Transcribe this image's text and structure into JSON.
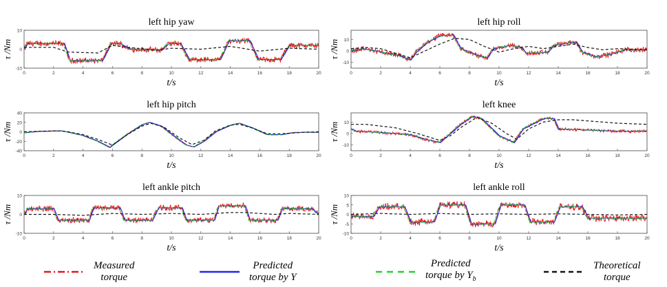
{
  "chart_data": [
    {
      "type": "line",
      "title": "left hip yaw",
      "xlabel": "t/s",
      "ylabel": "τ /Nm",
      "xlim": [
        0,
        20
      ],
      "ylim": [
        -10,
        10
      ],
      "xticks": [
        "0",
        "2",
        "4",
        "6",
        "8",
        "10",
        "12",
        "14",
        "16",
        "18",
        "20"
      ],
      "yticks": [
        "10",
        "0",
        "-10"
      ],
      "series_profile": {
        "measured_steps": [
          [
            0,
            0
          ],
          [
            0.2,
            3
          ],
          [
            2.7,
            3
          ],
          [
            3.1,
            -6
          ],
          [
            5.3,
            -6
          ],
          [
            5.9,
            3
          ],
          [
            6.5,
            3
          ],
          [
            7.2,
            0
          ],
          [
            9.3,
            -0.5
          ],
          [
            9.8,
            3
          ],
          [
            10.6,
            3
          ],
          [
            11.2,
            -5.5
          ],
          [
            13.3,
            -5.5
          ],
          [
            13.9,
            4.5
          ],
          [
            15.3,
            4.5
          ],
          [
            15.9,
            -5.5
          ],
          [
            17.4,
            -5.5
          ],
          [
            18.0,
            2
          ],
          [
            20,
            2
          ]
        ],
        "theoretical": [
          [
            0,
            1
          ],
          [
            2,
            1
          ],
          [
            3,
            -1.5
          ],
          [
            5,
            -2
          ],
          [
            6,
            2
          ],
          [
            7,
            1
          ],
          [
            9,
            -0.5
          ],
          [
            10,
            0.5
          ],
          [
            12,
            0
          ],
          [
            14,
            1.5
          ],
          [
            16,
            -1
          ],
          [
            18,
            0.5
          ],
          [
            20,
            0
          ]
        ],
        "noise": 1.2
      }
    },
    {
      "type": "line",
      "title": "left hip roll",
      "xlabel": "t/s",
      "ylabel": "τ /Nm",
      "xlim": [
        0,
        20
      ],
      "ylim": [
        -15,
        18
      ],
      "xticks": [
        "0",
        "2",
        "4",
        "6",
        "8",
        "10",
        "12",
        "14",
        "16",
        "18",
        "20"
      ],
      "yticks": [
        "10",
        "0",
        "-10"
      ],
      "series_profile": {
        "measured_steps": [
          [
            0,
            0
          ],
          [
            0.8,
            2
          ],
          [
            2,
            -1
          ],
          [
            3.2,
            -4
          ],
          [
            4,
            -8
          ],
          [
            4.4,
            -1
          ],
          [
            5.2,
            8
          ],
          [
            6,
            13
          ],
          [
            6.9,
            14
          ],
          [
            7.4,
            2
          ],
          [
            8.5,
            -4
          ],
          [
            9.2,
            -6
          ],
          [
            9.6,
            2
          ],
          [
            10.8,
            5
          ],
          [
            11.5,
            3
          ],
          [
            11.8,
            -2
          ],
          [
            12.5,
            -2
          ],
          [
            13.3,
            -1
          ],
          [
            13.7,
            5
          ],
          [
            15.2,
            8
          ],
          [
            15.6,
            -1
          ],
          [
            16.5,
            -5
          ],
          [
            17.5,
            -3
          ],
          [
            18.5,
            1
          ],
          [
            20,
            1
          ]
        ],
        "theoretical": [
          [
            0,
            2
          ],
          [
            1,
            3
          ],
          [
            2,
            2
          ],
          [
            3,
            -2
          ],
          [
            4,
            -6
          ],
          [
            5,
            0
          ],
          [
            6,
            6
          ],
          [
            7,
            11
          ],
          [
            8,
            10
          ],
          [
            9,
            4
          ],
          [
            10,
            -1
          ],
          [
            11,
            2
          ],
          [
            12,
            4
          ],
          [
            13,
            2
          ],
          [
            14,
            4
          ],
          [
            15,
            6
          ],
          [
            16,
            3
          ],
          [
            17,
            1
          ],
          [
            18,
            2
          ],
          [
            20,
            1
          ]
        ],
        "noise": 1.8
      }
    },
    {
      "type": "line",
      "title": "left hip pitch",
      "xlabel": "t/s",
      "ylabel": "τ /Nm",
      "xlim": [
        0,
        20
      ],
      "ylim": [
        -40,
        40
      ],
      "xticks": [
        "0",
        "2",
        "4",
        "6",
        "8",
        "10",
        "12",
        "14",
        "16",
        "18",
        "20"
      ],
      "yticks": [
        "40",
        "20",
        "0",
        "-20",
        "-40"
      ],
      "series_profile": {
        "measured_steps": [
          [
            0,
            -2
          ],
          [
            1,
            1
          ],
          [
            2.5,
            2
          ],
          [
            3,
            -1
          ],
          [
            4,
            -8
          ],
          [
            5,
            -20
          ],
          [
            5.8,
            -33
          ],
          [
            6,
            -28
          ],
          [
            7,
            -5
          ],
          [
            8,
            15
          ],
          [
            8.5,
            20
          ],
          [
            9.3,
            12
          ],
          [
            10.2,
            -10
          ],
          [
            11,
            -28
          ],
          [
            11.5,
            -32
          ],
          [
            12.2,
            -20
          ],
          [
            13,
            0
          ],
          [
            14,
            14
          ],
          [
            14.6,
            18
          ],
          [
            15.5,
            8
          ],
          [
            16.5,
            -6
          ],
          [
            17.5,
            -6
          ],
          [
            18.2,
            -2
          ],
          [
            19,
            -1
          ],
          [
            20,
            -1
          ]
        ],
        "theoretical": [
          [
            0,
            0
          ],
          [
            1,
            1
          ],
          [
            2.5,
            2
          ],
          [
            3,
            0
          ],
          [
            4,
            -6
          ],
          [
            5,
            -16
          ],
          [
            6,
            -28
          ],
          [
            7,
            -6
          ],
          [
            8,
            12
          ],
          [
            8.6,
            18
          ],
          [
            9.5,
            10
          ],
          [
            10.5,
            -12
          ],
          [
            11.4,
            -27
          ],
          [
            12.2,
            -18
          ],
          [
            13,
            2
          ],
          [
            14,
            14
          ],
          [
            14.6,
            16
          ],
          [
            15.5,
            8
          ],
          [
            16.5,
            -4
          ],
          [
            17.5,
            -4
          ],
          [
            19,
            -1
          ],
          [
            20,
            0
          ]
        ],
        "noise": 0.7
      }
    },
    {
      "type": "line",
      "title": "left knee",
      "xlabel": "t/s",
      "ylabel": "τ /Nm",
      "xlim": [
        0,
        20
      ],
      "ylim": [
        -15,
        18
      ],
      "xticks": [
        "0",
        "2",
        "4",
        "6",
        "8",
        "10",
        "12",
        "14",
        "16",
        "18",
        "20"
      ],
      "yticks": [
        "10",
        "0",
        "-10"
      ],
      "series_profile": {
        "measured_steps": [
          [
            0,
            4
          ],
          [
            0.3,
            2
          ],
          [
            2,
            1
          ],
          [
            4,
            -1
          ],
          [
            5,
            -5
          ],
          [
            6,
            -8
          ],
          [
            6.5,
            -2
          ],
          [
            7.5,
            9
          ],
          [
            8.2,
            15
          ],
          [
            8.8,
            13
          ],
          [
            9.2,
            8
          ],
          [
            10,
            -2
          ],
          [
            11,
            -8
          ],
          [
            11.6,
            4
          ],
          [
            13,
            13
          ],
          [
            13.7,
            13
          ],
          [
            14,
            4
          ],
          [
            16,
            3
          ],
          [
            18,
            2
          ],
          [
            20,
            2
          ]
        ],
        "theoretical": [
          [
            0,
            8
          ],
          [
            1,
            8
          ],
          [
            3,
            5
          ],
          [
            4.5,
            0
          ],
          [
            6,
            -6
          ],
          [
            6.7,
            -2
          ],
          [
            7.5,
            6
          ],
          [
            8.5,
            14
          ],
          [
            9.5,
            9
          ],
          [
            10.5,
            0
          ],
          [
            11.2,
            -5
          ],
          [
            12,
            4
          ],
          [
            13,
            10
          ],
          [
            14,
            12
          ],
          [
            15,
            12
          ],
          [
            17,
            10
          ],
          [
            18,
            9
          ],
          [
            20,
            8
          ]
        ],
        "noise": 1.0
      }
    },
    {
      "type": "line",
      "title": "left ankle pitch",
      "xlabel": "t/s",
      "ylabel": "τ /Nm",
      "xlim": [
        0,
        20
      ],
      "ylim": [
        -10,
        10
      ],
      "xticks": [
        "0",
        "2",
        "4",
        "6",
        "8",
        "10",
        "12",
        "14",
        "16",
        "18",
        "20"
      ],
      "yticks": [
        "10",
        "0",
        "-10"
      ],
      "series_profile": {
        "measured_steps": [
          [
            0,
            0
          ],
          [
            0.2,
            3
          ],
          [
            2,
            3
          ],
          [
            2.3,
            -3
          ],
          [
            4.4,
            -3
          ],
          [
            4.7,
            3.5
          ],
          [
            6.5,
            3.5
          ],
          [
            6.8,
            -3
          ],
          [
            8.7,
            -3
          ],
          [
            9.1,
            3.5
          ],
          [
            10.7,
            3.5
          ],
          [
            11,
            -3
          ],
          [
            12.9,
            -3
          ],
          [
            13.2,
            4.5
          ],
          [
            15,
            4.5
          ],
          [
            15.3,
            -3
          ],
          [
            17.2,
            -3
          ],
          [
            17.5,
            3
          ],
          [
            19.5,
            3
          ],
          [
            20,
            0
          ]
        ],
        "theoretical": [
          [
            0,
            0
          ],
          [
            2,
            0
          ],
          [
            4,
            -0.5
          ],
          [
            6,
            0.5
          ],
          [
            8,
            0
          ],
          [
            10,
            0.5
          ],
          [
            12,
            0
          ],
          [
            14,
            1
          ],
          [
            15,
            1
          ],
          [
            17,
            0
          ],
          [
            18,
            0.5
          ],
          [
            20,
            0
          ]
        ],
        "noise": 1.2
      }
    },
    {
      "type": "line",
      "title": "left ankle roll",
      "xlabel": "t/s",
      "ylabel": "τ /Nm",
      "xlim": [
        0,
        20
      ],
      "ylim": [
        -10,
        10
      ],
      "xticks": [
        "0",
        "2",
        "4",
        "6",
        "8",
        "10",
        "12",
        "14",
        "16",
        "18",
        "20"
      ],
      "yticks": [
        "10",
        "5",
        "0",
        "-5",
        "-10"
      ],
      "series_profile": {
        "measured_steps": [
          [
            0,
            -1
          ],
          [
            1.5,
            -1
          ],
          [
            1.9,
            4
          ],
          [
            3.6,
            4
          ],
          [
            4,
            -4
          ],
          [
            5.6,
            -4
          ],
          [
            6,
            5
          ],
          [
            7.7,
            5
          ],
          [
            8.1,
            -5
          ],
          [
            9.7,
            -5
          ],
          [
            10.1,
            5
          ],
          [
            11.7,
            5
          ],
          [
            12.1,
            -4
          ],
          [
            13.7,
            -4
          ],
          [
            14.1,
            4
          ],
          [
            15.6,
            4
          ],
          [
            16,
            -2
          ],
          [
            18,
            -2
          ],
          [
            18.3,
            -2
          ],
          [
            20,
            -2
          ]
        ],
        "theoretical": [
          [
            0,
            0
          ],
          [
            2,
            0.5
          ],
          [
            4,
            0
          ],
          [
            6,
            0.5
          ],
          [
            8,
            0
          ],
          [
            10,
            0.3
          ],
          [
            12,
            0
          ],
          [
            14,
            0.3
          ],
          [
            16,
            0
          ],
          [
            18,
            -0.3
          ],
          [
            20,
            0
          ]
        ],
        "noise": 1.4
      }
    }
  ],
  "legend": [
    {
      "key": "measured",
      "line1": "Measured",
      "line2": "torque",
      "line2_sub": "",
      "color": "#e8141a",
      "dash": "dash-dot"
    },
    {
      "key": "pred_y",
      "line1": "Predicted",
      "line2": "torque by Y",
      "line2_sub": "",
      "color": "#1f27e6",
      "dash": "solid"
    },
    {
      "key": "pred_yb",
      "line1": "Predicted",
      "line2": "torque by Y",
      "line2_sub": "b",
      "color": "#22d12a",
      "dash": "dashed"
    },
    {
      "key": "theoretical",
      "line1": "Theoretical",
      "line2": "torque",
      "line2_sub": "",
      "color": "#111111",
      "dash": "dashed"
    }
  ]
}
